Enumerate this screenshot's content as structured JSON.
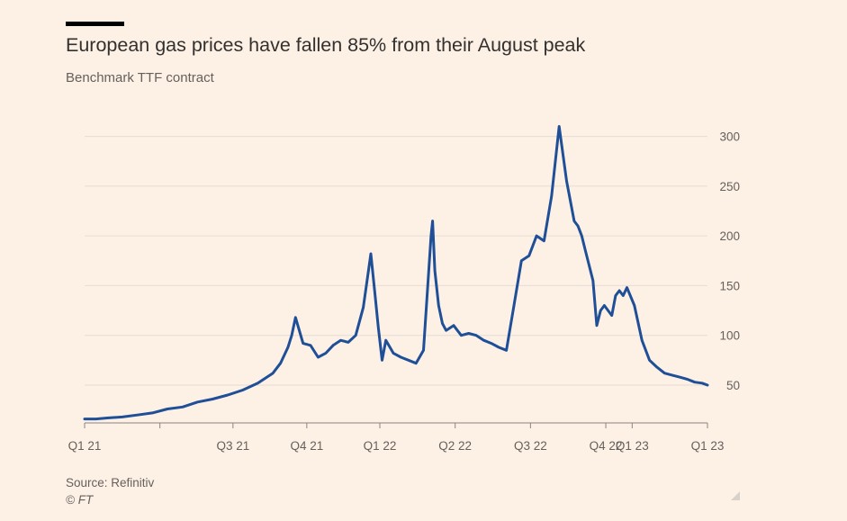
{
  "header": {
    "title": "European gas prices have fallen 85% from their August peak",
    "subtitle": "Benchmark TTF contract"
  },
  "footer": {
    "source": "Source: Refinitiv",
    "copyright": "© FT"
  },
  "colors": {
    "background": "#fdf1e6",
    "line": "#1f4f96",
    "grid": "#e6dcd3",
    "text": "#66605c"
  },
  "chart_data": {
    "type": "line",
    "title": "European gas prices have fallen 85% from their August peak",
    "subtitle": "Benchmark TTF contract",
    "xlabel": "",
    "ylabel": "",
    "y_axis_side": "right",
    "grid": true,
    "ylim": [
      12,
      315
    ],
    "xlim": [
      0,
      8.27
    ],
    "y_ticks": [
      50,
      100,
      150,
      200,
      250,
      300
    ],
    "x_tick_positions": [
      0,
      1,
      1.97,
      2.95,
      3.92,
      4.92,
      5.92,
      6.92,
      7.27,
      8.27
    ],
    "x_tick_labels": [
      "Q1 21",
      "",
      "Q3 21",
      "Q4 21",
      "Q1 22",
      "Q2 22",
      "Q3 22",
      "Q4 22",
      "Q1 23",
      "Q1 23"
    ],
    "series": [
      {
        "name": "Benchmark TTF contract",
        "x": [
          0,
          0.15,
          0.3,
          0.5,
          0.7,
          0.9,
          1.1,
          1.3,
          1.5,
          1.7,
          1.9,
          2.1,
          2.3,
          2.5,
          2.6,
          2.7,
          2.75,
          2.8,
          2.9,
          3.0,
          3.1,
          3.2,
          3.3,
          3.4,
          3.5,
          3.6,
          3.7,
          3.75,
          3.8,
          3.85,
          3.9,
          3.95,
          4.0,
          4.1,
          4.2,
          4.3,
          4.4,
          4.5,
          4.6,
          4.62,
          4.65,
          4.7,
          4.75,
          4.8,
          4.9,
          5.0,
          5.1,
          5.2,
          5.3,
          5.4,
          5.5,
          5.6,
          5.7,
          5.8,
          5.9,
          6.0,
          6.1,
          6.2,
          6.3,
          6.4,
          6.5,
          6.55,
          6.6,
          6.65,
          6.7,
          6.75,
          6.8,
          6.85,
          6.9,
          7.0,
          7.05,
          7.1,
          7.15,
          7.2,
          7.3,
          7.4,
          7.5,
          7.6,
          7.7,
          7.8,
          7.9,
          8.0,
          8.1,
          8.2,
          8.27
        ],
        "values": [
          16,
          16,
          17,
          18,
          20,
          22,
          26,
          28,
          33,
          36,
          40,
          45,
          52,
          62,
          72,
          88,
          100,
          118,
          92,
          90,
          78,
          82,
          90,
          95,
          93,
          100,
          128,
          155,
          182,
          145,
          108,
          75,
          95,
          82,
          78,
          75,
          72,
          85,
          200,
          215,
          165,
          130,
          112,
          105,
          110,
          100,
          102,
          100,
          95,
          92,
          88,
          85,
          130,
          175,
          180,
          200,
          195,
          240,
          310,
          255,
          215,
          210,
          200,
          185,
          170,
          155,
          110,
          125,
          130,
          120,
          140,
          145,
          140,
          148,
          130,
          95,
          75,
          68,
          62,
          60,
          58,
          56,
          53,
          52,
          50
        ]
      }
    ]
  }
}
